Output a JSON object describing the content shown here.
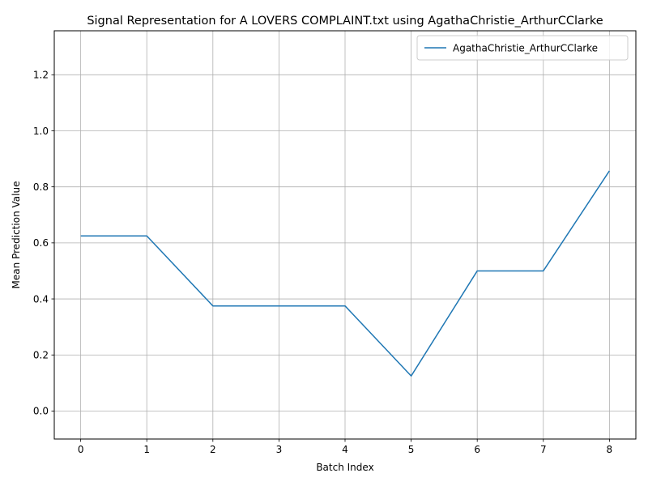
{
  "chart_data": {
    "type": "line",
    "title": "Signal Representation for A LOVERS COMPLAINT.txt using AgathaChristie_ArthurCClarke",
    "xlabel": "Batch Index",
    "ylabel": "Mean Prediction Value",
    "x": [
      0,
      1,
      2,
      3,
      4,
      5,
      6,
      7,
      8
    ],
    "series": [
      {
        "name": "AgathaChristie_ArthurCClarke",
        "values": [
          0.625,
          0.625,
          0.375,
          0.375,
          0.375,
          0.125,
          0.5,
          0.5,
          0.857
        ],
        "color": "#1f77b4"
      }
    ],
    "xlim": [
      -0.4,
      8.4
    ],
    "ylim": [
      -0.1,
      1.357
    ],
    "xticks": [
      "0",
      "1",
      "2",
      "3",
      "4",
      "5",
      "6",
      "7",
      "8"
    ],
    "yticks": [
      "0.0",
      "0.2",
      "0.4",
      "0.6",
      "0.8",
      "1.0",
      "1.2"
    ],
    "grid": true,
    "legend_position": "top-right"
  }
}
